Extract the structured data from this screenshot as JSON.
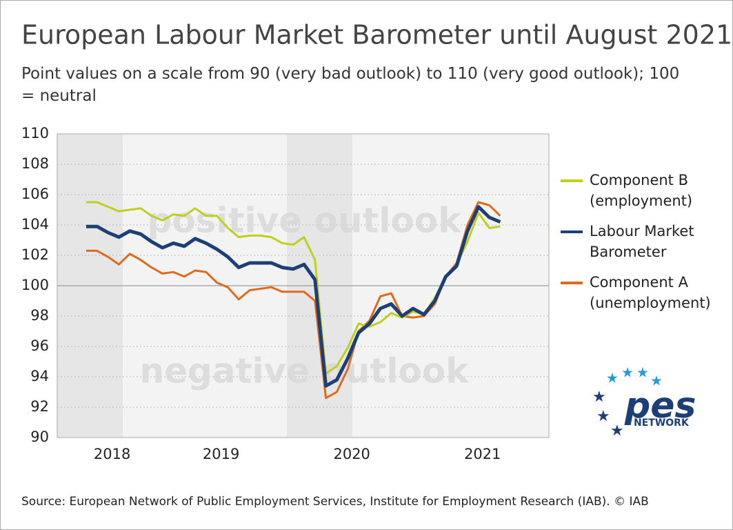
{
  "chart_data": {
    "type": "line",
    "title": "European Labour Market Barometer until August 2021",
    "subtitle": "Point values on a scale from 90 (very bad outlook) to 110 (very good outlook); 100 = neutral",
    "annotations": [
      "positive outlook",
      "negative outlook"
    ],
    "source": "Source: European Network of Public Employment Services, Institute for Employment Research (IAB).  © IAB",
    "logo": {
      "word": "pes",
      "subword": "NETWORK"
    },
    "categories": [
      null,
      null,
      "2018",
      null,
      null,
      null,
      null,
      null,
      null,
      null,
      null,
      null,
      "2019",
      null,
      null,
      null,
      null,
      null,
      null,
      null,
      null,
      null,
      null,
      null,
      "2020",
      null,
      null,
      null,
      null,
      null,
      null,
      null,
      null,
      null,
      null,
      null,
      "2021",
      null,
      null
    ],
    "series": [
      {
        "name": "Component B (employment)",
        "color": "#bfcf1a",
        "values": [
          105.5,
          105.5,
          105.2,
          104.9,
          105.0,
          105.1,
          104.6,
          104.3,
          104.7,
          104.6,
          105.1,
          104.6,
          104.6,
          103.8,
          103.2,
          103.3,
          103.3,
          103.2,
          102.8,
          102.7,
          103.2,
          101.7,
          94.2,
          94.7,
          95.9,
          97.5,
          97.3,
          97.6,
          98.2,
          97.9,
          98.3,
          98.1,
          99.2,
          100.6,
          101.4,
          102.9,
          104.8,
          103.8,
          103.9
        ]
      },
      {
        "name": "Labour Market Barometer",
        "color": "#1d3f77",
        "values": [
          103.9,
          103.9,
          103.5,
          103.2,
          103.6,
          103.4,
          102.9,
          102.5,
          102.8,
          102.6,
          103.1,
          102.8,
          102.4,
          101.9,
          101.2,
          101.5,
          101.5,
          101.5,
          101.2,
          101.1,
          101.4,
          100.4,
          93.4,
          93.8,
          95.2,
          96.9,
          97.5,
          98.5,
          98.8,
          98.0,
          98.5,
          98.1,
          99.0,
          100.6,
          101.3,
          103.6,
          105.2,
          104.5,
          104.2
        ]
      },
      {
        "name": "Component A (unemployment)",
        "color": "#e0691c",
        "values": [
          102.3,
          102.3,
          101.9,
          101.4,
          102.1,
          101.7,
          101.2,
          100.8,
          100.9,
          100.6,
          101.0,
          100.9,
          100.2,
          99.9,
          99.1,
          99.7,
          99.8,
          99.9,
          99.6,
          99.6,
          99.6,
          99.0,
          92.6,
          93.0,
          94.5,
          97.0,
          97.7,
          99.3,
          99.5,
          98.0,
          97.9,
          98.0,
          98.8,
          100.6,
          101.5,
          104.0,
          105.5,
          105.3,
          104.6
        ]
      }
    ],
    "ylim": [
      90,
      110
    ],
    "yticks": [
      90,
      92,
      94,
      96,
      98,
      100,
      102,
      104,
      106,
      108,
      110
    ],
    "grid": true,
    "reference_line": 100,
    "legend": "right"
  }
}
